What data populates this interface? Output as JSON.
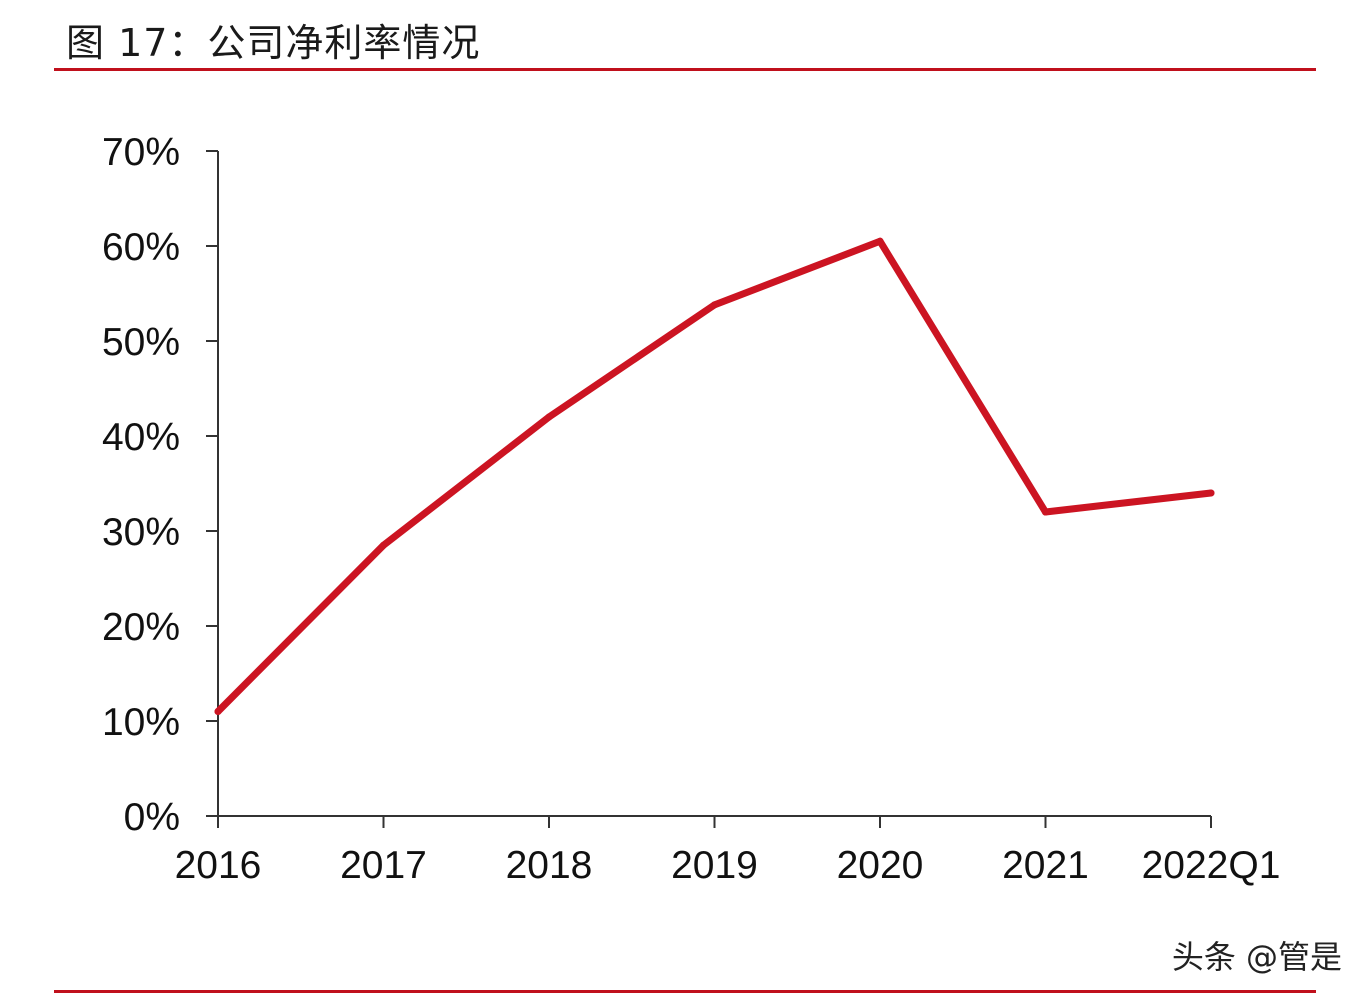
{
  "header": {
    "title": "图 17：公司净利率情况"
  },
  "watermark": "头条 @管是",
  "colors": {
    "accent": "#c0101c",
    "line": "#cc1422",
    "axis": "#333333"
  },
  "chart_data": {
    "type": "line",
    "categories": [
      "2016",
      "2017",
      "2018",
      "2019",
      "2020",
      "2021",
      "2022Q1"
    ],
    "series": [
      {
        "values": [
          0.11,
          0.285,
          0.42,
          0.538,
          0.605,
          0.32,
          0.34
        ]
      }
    ],
    "y_ticks": [
      0,
      0.1,
      0.2,
      0.3,
      0.4,
      0.5,
      0.6,
      0.7
    ],
    "y_tick_labels": [
      "0%",
      "10%",
      "20%",
      "30%",
      "40%",
      "50%",
      "60%",
      "70%"
    ],
    "ylim": [
      0,
      0.7
    ],
    "grid": false,
    "legend": "none"
  }
}
